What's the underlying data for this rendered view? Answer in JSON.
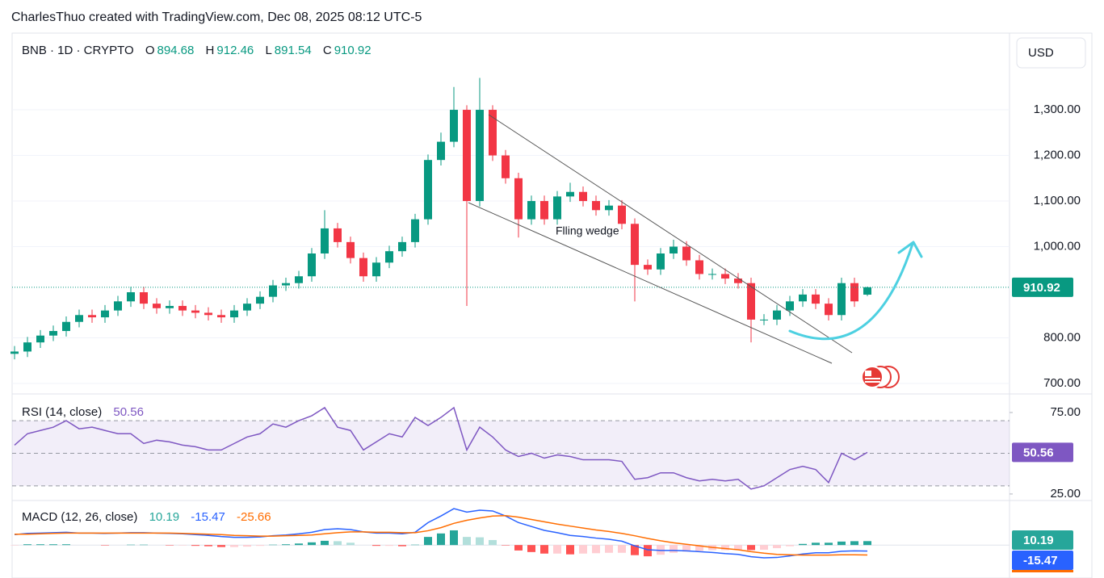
{
  "header": {
    "attribution": "CharlesThuo created with TradingView.com, Dec 08, 2025 08:12 UTC-5",
    "currency": "USD"
  },
  "chart_data": [
    {
      "type": "candlestick",
      "symbol": "BNB · 1D · CRYPTO",
      "ohlc_labels": [
        "O",
        "H",
        "L",
        "C"
      ],
      "open": [
        765,
        770,
        790,
        805,
        815,
        835,
        850,
        845,
        860,
        880,
        900,
        875,
        865,
        870,
        860,
        855,
        850,
        845,
        860,
        875,
        890,
        915,
        920,
        935,
        985,
        1040,
        1010,
        975,
        935,
        965,
        990,
        1010,
        1060,
        1190,
        1230,
        1300,
        1100,
        1300,
        1200,
        1150,
        1060,
        1100,
        1060,
        1110,
        1120,
        1100,
        1080,
        1090,
        1050,
        960,
        950,
        985,
        1000,
        970,
        940,
        940,
        930,
        920,
        840,
        840,
        860,
        880,
        895,
        875,
        850,
        920,
        894.68
      ],
      "high": [
        782,
        802,
        817,
        827,
        847,
        862,
        862,
        872,
        892,
        912,
        912,
        887,
        882,
        882,
        872,
        867,
        862,
        872,
        887,
        902,
        927,
        932,
        947,
        997,
        1080,
        1052,
        1022,
        987,
        977,
        1002,
        1022,
        1072,
        1202,
        1250,
        1350,
        1310,
        1370,
        1310,
        1212,
        1162,
        1112,
        1112,
        1122,
        1140,
        1132,
        1112,
        1102,
        1102,
        1062,
        972,
        997,
        1015,
        1012,
        982,
        952,
        952,
        942,
        932,
        852,
        872,
        892,
        907,
        907,
        887,
        932,
        932,
        912.46
      ],
      "low": [
        753,
        758,
        778,
        793,
        803,
        823,
        833,
        833,
        848,
        868,
        863,
        853,
        853,
        848,
        843,
        838,
        833,
        833,
        848,
        863,
        878,
        903,
        908,
        923,
        973,
        998,
        963,
        923,
        923,
        953,
        978,
        998,
        1048,
        1178,
        1218,
        870,
        1088,
        1188,
        1138,
        1020,
        1048,
        1048,
        1048,
        1098,
        1088,
        1068,
        1068,
        1038,
        880,
        938,
        938,
        973,
        958,
        928,
        928,
        918,
        908,
        790,
        828,
        828,
        848,
        868,
        863,
        838,
        838,
        868,
        891.54
      ],
      "close": [
        770,
        790,
        805,
        815,
        835,
        850,
        845,
        860,
        880,
        900,
        875,
        865,
        870,
        860,
        855,
        850,
        845,
        860,
        875,
        890,
        915,
        920,
        935,
        985,
        1040,
        1010,
        975,
        935,
        965,
        990,
        1010,
        1060,
        1190,
        1230,
        1300,
        1100,
        1300,
        1200,
        1150,
        1060,
        1100,
        1060,
        1110,
        1120,
        1100,
        1080,
        1090,
        1050,
        960,
        950,
        985,
        1000,
        970,
        940,
        940,
        930,
        920,
        840,
        840,
        860,
        880,
        895,
        875,
        850,
        920,
        880,
        910.92
      ],
      "up_color": "#089981",
      "down_color": "#f23645",
      "ylim": [
        677,
        1470
      ],
      "yticks": [
        {
          "value": 700,
          "label": "700.00"
        },
        {
          "value": 800,
          "label": "800.00"
        },
        {
          "value": 1000,
          "label": "1,000.00"
        },
        {
          "value": 1100,
          "label": "1,100.00"
        },
        {
          "value": 1200,
          "label": "1,200.00"
        },
        {
          "value": 1300,
          "label": "1,300.00"
        }
      ],
      "grid": true,
      "annotation": "Flling wedge"
    },
    {
      "type": "rsi",
      "title": "RSI (14, close)",
      "series": [
        {
          "color": "#7e57c2",
          "values": [
            55,
            62,
            64,
            66,
            70,
            65,
            66,
            64,
            62,
            62,
            56,
            58,
            57,
            55,
            54,
            52,
            52,
            56,
            60,
            62,
            68,
            66,
            70,
            73,
            78,
            66,
            64,
            52,
            57,
            62,
            60,
            72,
            67,
            72,
            78,
            52,
            66,
            60,
            52,
            48,
            50,
            47,
            49,
            48,
            46,
            46,
            46,
            45,
            34,
            35,
            38,
            38,
            35,
            33,
            34,
            33,
            34,
            28,
            30,
            35,
            40,
            42,
            40,
            32,
            50,
            46,
            50.56
          ]
        }
      ],
      "ylim": [
        21,
        86.4
      ],
      "yticks": [
        {
          "value": 75,
          "label": "75.00"
        },
        {
          "value": 25,
          "label": "25.00"
        }
      ],
      "band": [
        30,
        70
      ],
      "midline": 50
    },
    {
      "type": "macd",
      "title": "MACD (12, 26, close)",
      "series": [
        {
          "color": "#26a69a",
          "values": [
            -1,
            2,
            2,
            2,
            2,
            0,
            0,
            -1,
            0,
            1,
            1,
            0,
            -1,
            -1,
            -2,
            -3,
            -5,
            -5,
            -4,
            -2,
            1,
            2,
            4,
            7,
            11,
            10,
            6,
            0,
            -2,
            -2,
            -3,
            1,
            21,
            30,
            38,
            21,
            20,
            13,
            -1,
            -14,
            -18,
            -22,
            -22,
            -24,
            -22,
            -21,
            -20,
            -20,
            -26,
            -29,
            -25,
            -20,
            -17,
            -15,
            -13,
            -13,
            -12,
            -13,
            -12,
            -8,
            -3,
            3,
            6,
            6,
            9,
            10,
            10.19
          ]
        },
        {
          "color": "#2962ff",
          "values": [
            27,
            30,
            31,
            32,
            33,
            31,
            31,
            30,
            31,
            32,
            32,
            31,
            30,
            29,
            27,
            25,
            22,
            20,
            20,
            21,
            24,
            26,
            29,
            33,
            40,
            42,
            40,
            34,
            31,
            31,
            29,
            33,
            58,
            75,
            94,
            85,
            90,
            88,
            75,
            58,
            48,
            38,
            32,
            25,
            22,
            18,
            15,
            10,
            -2,
            -12,
            -14,
            -14,
            -15,
            -17,
            -19,
            -22,
            -24,
            -30,
            -33,
            -32,
            -28,
            -23,
            -20,
            -20,
            -16,
            -15,
            -15.47
          ]
        },
        {
          "color": "#ff6d00",
          "values": [
            28,
            28,
            29,
            30,
            31,
            31,
            31,
            31,
            31,
            31,
            31,
            31,
            31,
            30,
            29,
            28,
            27,
            25,
            24,
            23,
            23,
            24,
            25,
            26,
            29,
            32,
            34,
            34,
            33,
            33,
            32,
            32,
            37,
            45,
            56,
            64,
            70,
            75,
            76,
            72,
            66,
            60,
            54,
            49,
            44,
            39,
            35,
            30,
            24,
            17,
            11,
            6,
            2,
            -2,
            -6,
            -9,
            -12,
            -17,
            -21,
            -24,
            -25,
            -26,
            -26,
            -26,
            -25,
            -25,
            -25.66
          ]
        }
      ],
      "histogram_colors": [
        "#26a69a",
        "#b2dfdb",
        "#ffcdd2",
        "#ff5252"
      ],
      "ylim": [
        -85,
        115
      ]
    }
  ]
}
